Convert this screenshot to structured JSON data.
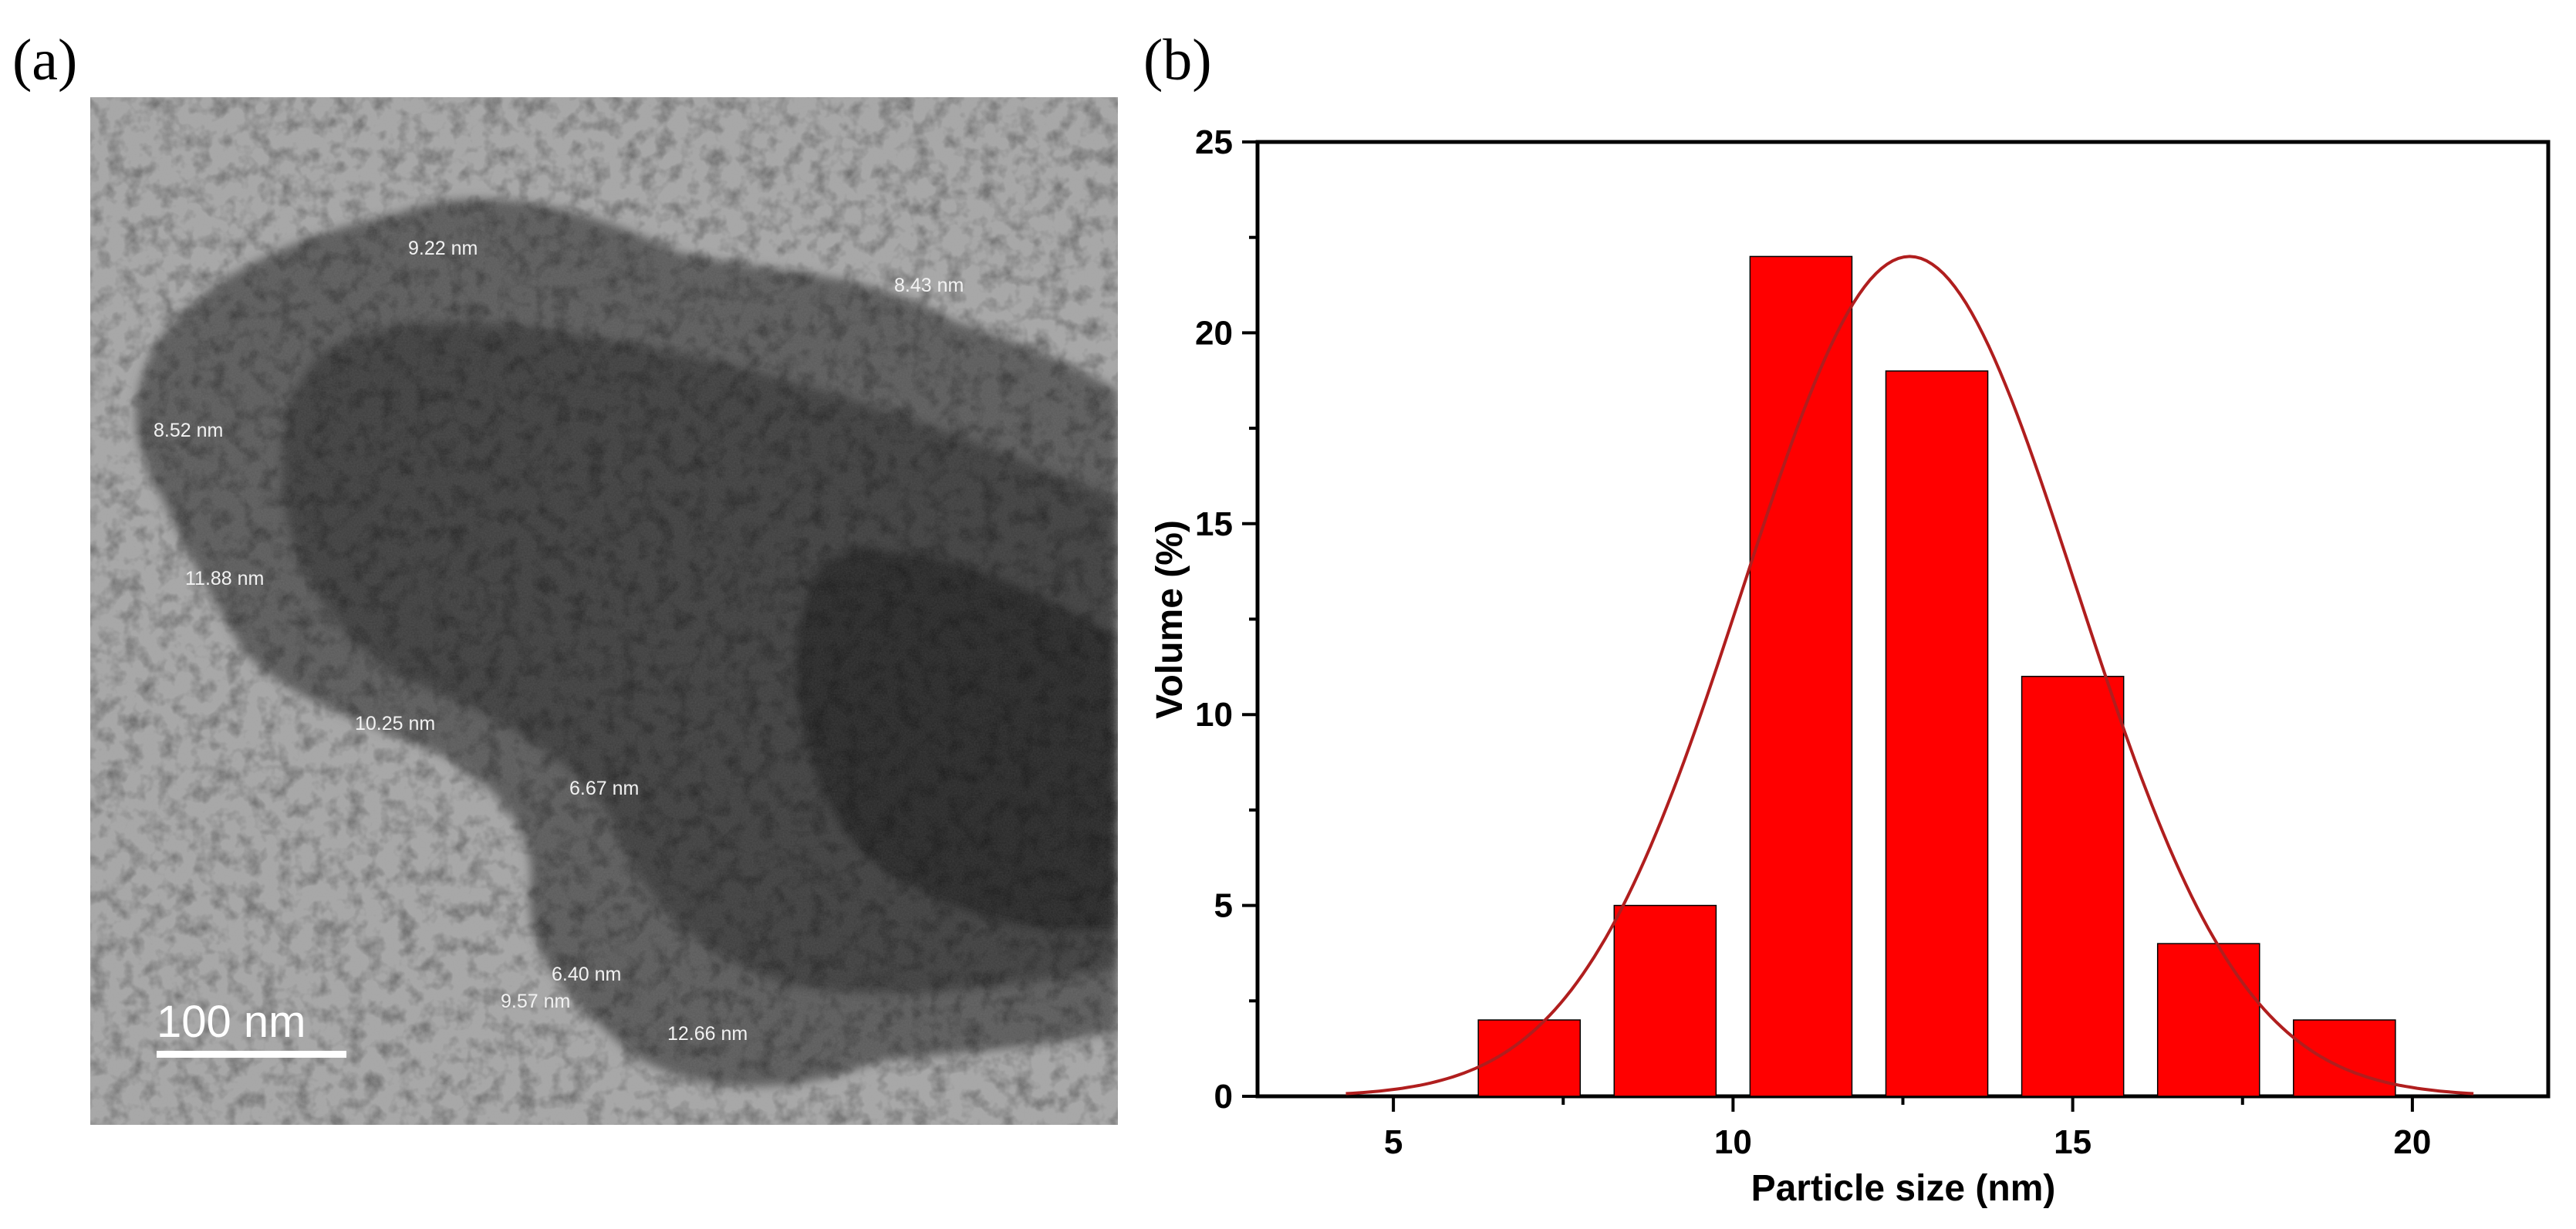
{
  "panels": {
    "a_label": "(a)",
    "b_label": "(b)"
  },
  "micrograph": {
    "scale_bar_label": "100 nm",
    "measurements": [
      "9.22 nm",
      "8.43 nm",
      "8.52 nm",
      "11.88 nm",
      "10.25 nm",
      "6.67 nm",
      "6.40 nm",
      "9.57 nm",
      "12.66 nm"
    ]
  },
  "chart_data": {
    "type": "bar",
    "xlabel": "Particle size (nm)",
    "ylabel": "Volume (%)",
    "xlim": [
      3,
      22
    ],
    "ylim": [
      0,
      25
    ],
    "xticks": [
      5,
      10,
      15,
      20
    ],
    "yticks": [
      0,
      5,
      10,
      15,
      20,
      25
    ],
    "bin_width": 1.5,
    "x": [
      7,
      9,
      11,
      13,
      15,
      17,
      19
    ],
    "values": [
      2,
      5,
      22,
      19,
      11,
      4,
      2
    ],
    "bar_color": "#ff0000",
    "fit_curve": {
      "type": "gaussian",
      "mean": 12.6,
      "sigma": 2.45,
      "peak": 22,
      "x_range": [
        4.3,
        20.9
      ],
      "color": "#b01e1e"
    },
    "grid": false
  }
}
